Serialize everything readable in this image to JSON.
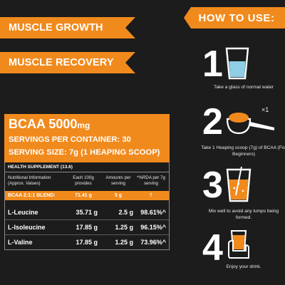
{
  "banners": {
    "growth": "MUSCLE GROWTH",
    "recovery": "MUSCLE RECOVERY"
  },
  "facts": {
    "title_main": "BCAA 5000",
    "title_unit": "mg",
    "servings": "SERVINGS PER CONTAINER: 30",
    "serving_size": "SERVING SIZE: 7g (1 HEAPING SCOOP)",
    "health": "HEALTH SUPPLEMENT (13.6)",
    "headers": {
      "nutrition": "Nutritional Information (Approx. Values)",
      "per100": "Each 100g provides",
      "per_serving": "Amounts per serving",
      "rda": "*%RDA per 7g serving"
    },
    "blend": {
      "label": "BCAA 2:1:1 BLEND:",
      "per100": "71.41 g",
      "per_serving": "5 g",
      "rda": "†"
    },
    "rows": [
      {
        "name": "L-Leucine",
        "per100": "35.71 g",
        "per_serving": "2.5 g",
        "rda": "98.61%^"
      },
      {
        "name": "L-Isoleucine",
        "per100": "17.85 g",
        "per_serving": "1.25 g",
        "rda": "96.15%^"
      },
      {
        "name": "L-Valine",
        "per100": "17.85 g",
        "per_serving": "1.25 g",
        "rda": "73.96%^"
      }
    ]
  },
  "howto": {
    "title": "HOW TO USE:",
    "steps": [
      {
        "num": "1",
        "caption": "Take a glass of normal water",
        "icon": "water-glass-icon"
      },
      {
        "num": "2",
        "caption": "Take 1 Heaping scoop (7g) of BCAA (For Beginners)",
        "icon": "scoop-icon",
        "badge": "×1"
      },
      {
        "num": "3",
        "caption": "Mix well to avoid any lumps being formed.",
        "icon": "mixing-glass-icon"
      },
      {
        "num": "4",
        "caption": "Enjoy your drink.",
        "icon": "hand-drink-icon"
      }
    ]
  },
  "colors": {
    "accent": "#f18a1c",
    "background": "#1c1c1c",
    "water": "#8ecfe6"
  }
}
